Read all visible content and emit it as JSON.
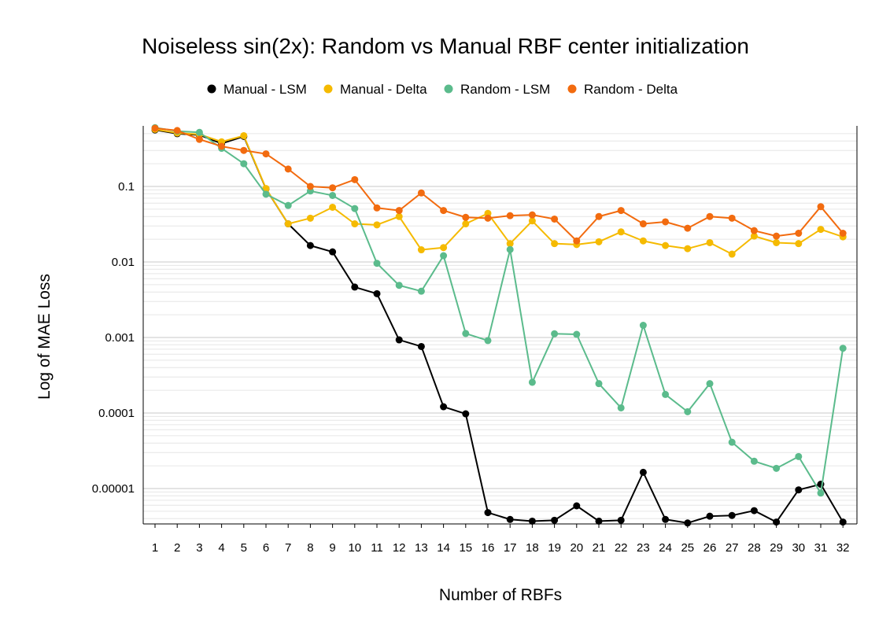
{
  "chart_data": {
    "type": "line",
    "title": "Noiseless sin(2x): Random vs Manual RBF center initialization",
    "xlabel": "Number of RBFs",
    "ylabel": "Log of MAE Loss",
    "x": [
      1,
      2,
      3,
      4,
      5,
      6,
      7,
      8,
      9,
      10,
      11,
      12,
      13,
      14,
      15,
      16,
      17,
      18,
      19,
      20,
      21,
      22,
      23,
      24,
      25,
      26,
      27,
      28,
      29,
      30,
      31,
      32
    ],
    "y_scale": "log",
    "ylim": [
      3.5e-06,
      0.6
    ],
    "y_ticks": [
      1e-05,
      0.0001,
      0.001,
      0.01,
      0.1
    ],
    "y_tick_labels": [
      "0.00001",
      "0.0001",
      "0.001",
      "0.01",
      "0.1"
    ],
    "grid": true,
    "legend_position": "top",
    "series": [
      {
        "name": "Manual - LSM",
        "color": "#000000",
        "values": [
          0.56,
          0.5,
          0.48,
          0.37,
          0.46,
          0.093,
          0.032,
          0.0165,
          0.0136,
          0.00465,
          0.0038,
          0.00093,
          0.00076,
          0.000121,
          9.75e-05,
          4.8e-06,
          3.9e-06,
          3.7e-06,
          3.8e-06,
          5.9e-06,
          3.7e-06,
          3.8e-06,
          1.64e-05,
          3.9e-06,
          3.5e-06,
          4.3e-06,
          4.4e-06,
          5.1e-06,
          3.6e-06,
          9.6e-06,
          1.14e-05,
          3.6e-06
        ]
      },
      {
        "name": "Manual - Delta",
        "color": "#F5BA00",
        "values": [
          0.57,
          0.51,
          0.49,
          0.39,
          0.47,
          0.094,
          0.032,
          0.038,
          0.053,
          0.032,
          0.031,
          0.04,
          0.0145,
          0.0155,
          0.032,
          0.044,
          0.0175,
          0.035,
          0.0175,
          0.017,
          0.0185,
          0.025,
          0.019,
          0.0165,
          0.015,
          0.018,
          0.0127,
          0.022,
          0.018,
          0.0175,
          0.027,
          0.0215
        ]
      },
      {
        "name": "Random - LSM",
        "color": "#5BBB8C",
        "values": [
          0.6,
          0.54,
          0.52,
          0.32,
          0.2,
          0.079,
          0.056,
          0.087,
          0.076,
          0.051,
          0.0096,
          0.0049,
          0.0041,
          0.0121,
          0.00113,
          0.00091,
          0.0146,
          0.000255,
          0.00112,
          0.0011,
          0.000245,
          0.000117,
          0.00145,
          0.000176,
          0.000104,
          0.000245,
          4.1e-05,
          2.3e-05,
          1.85e-05,
          2.65e-05,
          8.7e-06,
          0.00072
        ]
      },
      {
        "name": "Random - Delta",
        "color": "#F26B0F",
        "values": [
          0.59,
          0.55,
          0.42,
          0.34,
          0.3,
          0.27,
          0.17,
          0.1,
          0.096,
          0.123,
          0.052,
          0.048,
          0.082,
          0.048,
          0.039,
          0.038,
          0.041,
          0.042,
          0.037,
          0.019,
          0.04,
          0.048,
          0.032,
          0.034,
          0.028,
          0.04,
          0.038,
          0.026,
          0.022,
          0.024,
          0.054,
          0.024
        ]
      }
    ]
  }
}
